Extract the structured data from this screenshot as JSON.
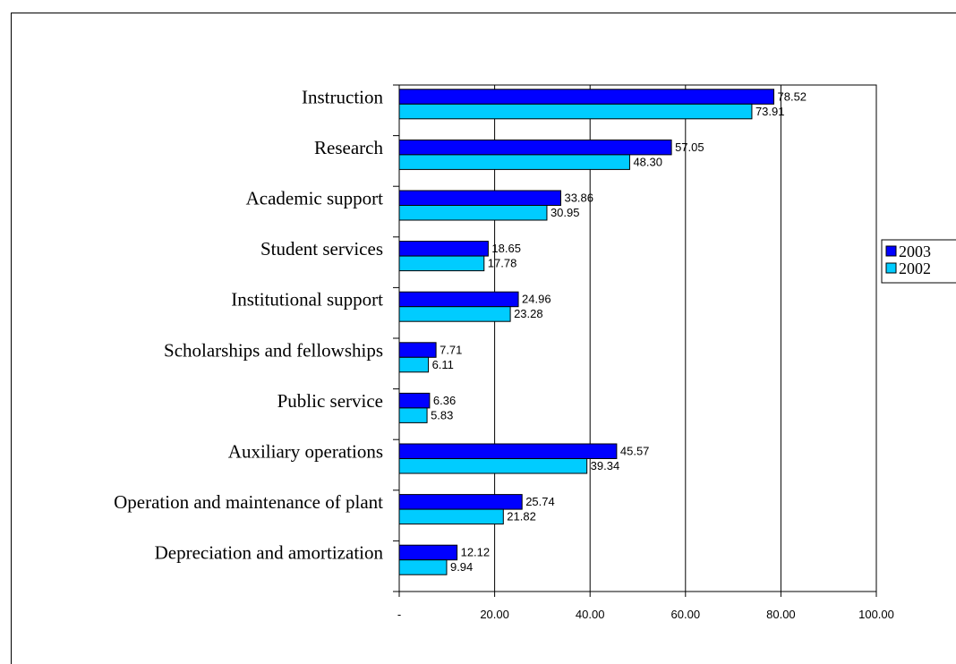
{
  "chart_data": {
    "type": "bar",
    "orientation": "horizontal",
    "categories": [
      "Instruction",
      "Research",
      "Academic support",
      "Student services",
      "Institutional support",
      "Scholarships and fellowships",
      "Public service",
      "Auxiliary operations",
      "Operation and maintenance of plant",
      "Depreciation and amortization"
    ],
    "series": [
      {
        "name": "2003",
        "color": "#0000ff",
        "values": [
          78.52,
          57.05,
          33.86,
          18.65,
          24.96,
          7.71,
          6.36,
          45.57,
          25.74,
          12.12
        ],
        "labels": [
          "78.52",
          "57.05",
          "33.86",
          "18.65",
          "24.96",
          "7.71",
          "6.36",
          "45.57",
          "25.74",
          "12.12"
        ]
      },
      {
        "name": "2002",
        "color": "#00ccff",
        "values": [
          73.91,
          48.3,
          30.95,
          17.78,
          23.28,
          6.11,
          5.83,
          39.34,
          21.82,
          9.94
        ],
        "labels": [
          "73.91",
          "48.30",
          "30.95",
          "17.78",
          "23.28",
          "6.11",
          "5.83",
          "39.34",
          "21.82",
          "9.94"
        ]
      }
    ],
    "xlim": [
      0,
      100
    ],
    "x_ticks": [
      0,
      20,
      40,
      60,
      80,
      100
    ],
    "x_tick_labels": [
      "-",
      "20.00",
      "40.00",
      "60.00",
      "80.00",
      "100.00"
    ],
    "grid": "vertical",
    "legend": "right"
  }
}
